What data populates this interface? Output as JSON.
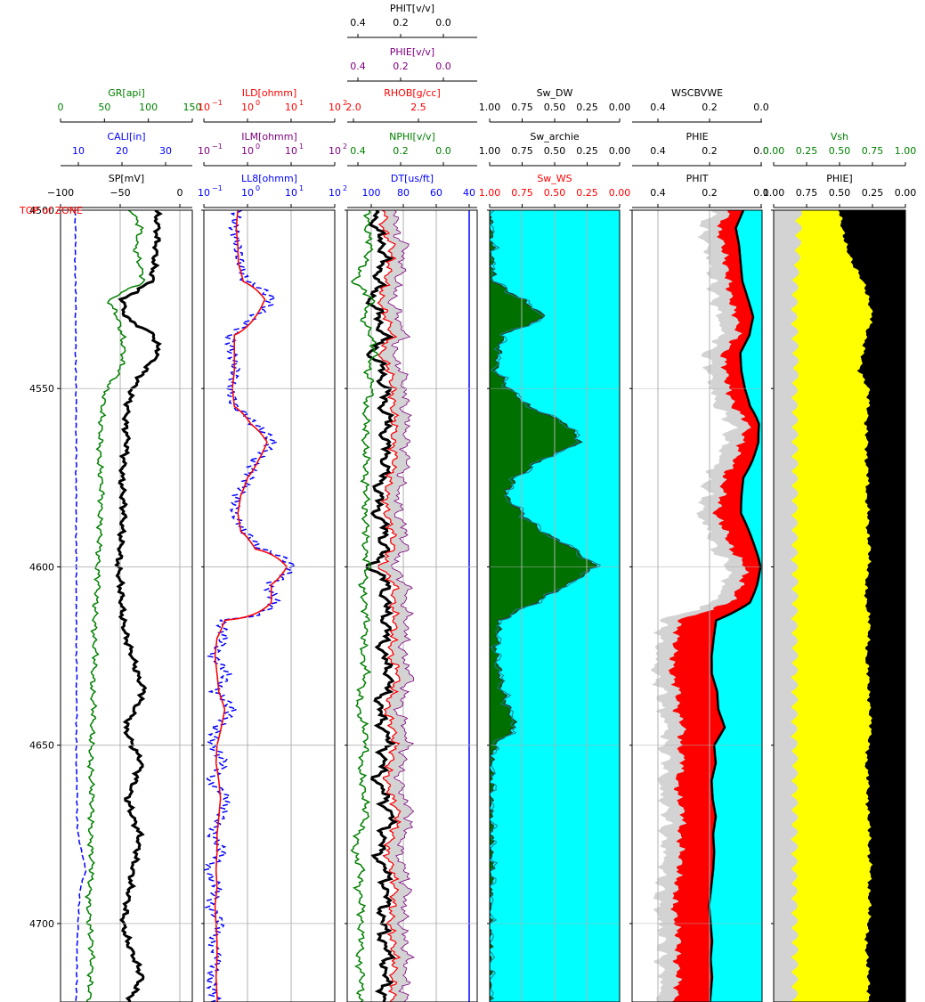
{
  "depth_axis": {
    "ticks": [
      4500,
      4550,
      4600,
      4650,
      4700
    ],
    "range": [
      4500,
      4722
    ]
  },
  "zone_label": "TOP of ZONE",
  "colors": {
    "black": "#000000",
    "green": "#008000",
    "blue": "#0000ff",
    "red": "#ff0000",
    "purple": "#800080",
    "cyan": "#00ffff",
    "darkgreen": "#006400",
    "lightgray": "#d3d3d3",
    "yellow": "#ffff00"
  },
  "tracks": [
    {
      "id": "track1",
      "scales": [
        {
          "label": "GR[api]",
          "color": "green",
          "ticks": [
            "0",
            "50",
            "100",
            "150"
          ],
          "range": [
            0,
            150
          ]
        },
        {
          "label": "CALI[in]",
          "color": "blue",
          "ticks": [
            "10",
            "20",
            "30"
          ],
          "range": [
            5,
            35
          ]
        },
        {
          "label": "SP[mV]",
          "color": "black",
          "ticks": [
            "−100",
            "−50",
            "0"
          ],
          "range": [
            -100,
            10
          ]
        }
      ]
    },
    {
      "id": "track2",
      "scales": [
        {
          "label": "ILD[ohmm]",
          "color": "red",
          "ticks": [
            "10",
            "10",
            "10",
            "10"
          ],
          "sup": [
            "−1",
            "0",
            "1",
            "2"
          ],
          "log": true
        },
        {
          "label": "ILM[ohmm]",
          "color": "purple",
          "ticks": [
            "10",
            "10",
            "10",
            "10"
          ],
          "sup": [
            "−1",
            "0",
            "1",
            "2"
          ],
          "log": true
        },
        {
          "label": "LL8[ohmm]",
          "color": "blue",
          "ticks": [
            "10",
            "10",
            "10",
            "10"
          ],
          "sup": [
            "−1",
            "0",
            "1",
            "2"
          ],
          "log": true
        }
      ]
    },
    {
      "id": "track3",
      "scales": [
        {
          "label": "PHIT[v/v]",
          "color": "black",
          "ticks": [
            "0.4",
            "0.2",
            "0.0"
          ],
          "range": [
            0.45,
            -0.15
          ]
        },
        {
          "label": "PHIE[v/v]",
          "color": "purple",
          "ticks": [
            "0.4",
            "0.2",
            "0.0"
          ],
          "range": [
            0.45,
            -0.15
          ]
        },
        {
          "label": "RHOB[g/cc]",
          "color": "red",
          "ticks": [
            "2.0",
            "2.5"
          ],
          "range": [
            1.95,
            2.95
          ]
        },
        {
          "label": "NPHI[v/v]",
          "color": "green",
          "ticks": [
            "0.4",
            "0.2",
            "0.0"
          ],
          "range": [
            0.45,
            -0.15
          ]
        },
        {
          "label": "DT[us/ft]",
          "color": "blue",
          "ticks": [
            "100",
            "80",
            "60",
            "40"
          ],
          "range": [
            140,
            40
          ]
        }
      ]
    },
    {
      "id": "track4",
      "scales": [
        {
          "label": "Sw_DW",
          "color": "black",
          "ticks": [
            "1.00",
            "0.75",
            "0.50",
            "0.25",
            "0.00"
          ],
          "range": [
            1,
            0
          ]
        },
        {
          "label": "Sw_archie",
          "color": "black",
          "ticks": [
            "1.00",
            "0.75",
            "0.50",
            "0.25",
            "0.00"
          ],
          "range": [
            1,
            0
          ]
        },
        {
          "label": "Sw_WS",
          "color": "red",
          "ticks": [
            "1.00",
            "0.75",
            "0.50",
            "0.25",
            "0.00"
          ],
          "range": [
            1,
            0
          ]
        }
      ]
    },
    {
      "id": "track5",
      "scales": [
        {
          "label": "WSCBVWE",
          "color": "black",
          "ticks": [
            "0.4",
            "0.2",
            "0.0"
          ],
          "range": [
            0.5,
            0
          ]
        },
        {
          "label": "PHIE",
          "color": "black",
          "ticks": [
            "0.4",
            "0.2",
            "0.0"
          ],
          "range": [
            0.5,
            0
          ]
        },
        {
          "label": "PHIT",
          "color": "black",
          "ticks": [
            "0.4",
            "0.2",
            "0.0"
          ],
          "range": [
            0.5,
            0
          ]
        }
      ]
    },
    {
      "id": "track6",
      "scales": [
        {
          "label": "Vsh",
          "color": "green",
          "ticks": [
            "0.00",
            "0.25",
            "0.50",
            "0.75",
            "1.00"
          ],
          "range": [
            0,
            1
          ]
        },
        {
          "label": "PHIE]",
          "color": "black",
          "ticks": [
            "1.00",
            "0.75",
            "0.50",
            "0.25",
            "0.00"
          ],
          "range": [
            1,
            0
          ]
        }
      ]
    }
  ],
  "chart_data": {
    "type": "line",
    "title": "",
    "xlabel": "",
    "ylabel": "",
    "ylim": [
      4500,
      4722
    ],
    "grid": true,
    "depth": [
      4500,
      4505,
      4510,
      4515,
      4520,
      4525,
      4530,
      4535,
      4540,
      4545,
      4550,
      4555,
      4560,
      4565,
      4570,
      4575,
      4580,
      4585,
      4590,
      4595,
      4600,
      4605,
      4610,
      4615,
      4620,
      4625,
      4630,
      4635,
      4640,
      4645,
      4650,
      4655,
      4660,
      4665,
      4670,
      4675,
      4680,
      4685,
      4690,
      4695,
      4700,
      4705,
      4710,
      4715,
      4720
    ],
    "series": [
      {
        "name": "GR[api]",
        "values": [
          80,
          92,
          85,
          90,
          95,
          55,
          65,
          70,
          72,
          68,
          52,
          48,
          46,
          45,
          44,
          46,
          47,
          45,
          45,
          44,
          42,
          43,
          40,
          39,
          38,
          40,
          37,
          36,
          38,
          36,
          35,
          34,
          35,
          36,
          35,
          34,
          35,
          36,
          33,
          32,
          33,
          35,
          36,
          34,
          33
        ]
      },
      {
        "name": "CALI[in]",
        "values": [
          8.3,
          8.4,
          8.4,
          8.3,
          8.4,
          8.5,
          8.4,
          8.5,
          8.4,
          8.5,
          8.5,
          8.6,
          8.5,
          8.6,
          8.6,
          8.5,
          8.6,
          8.6,
          8.5,
          8.6,
          8.6,
          8.6,
          8.6,
          8.6,
          8.6,
          8.6,
          8.7,
          8.6,
          8.7,
          8.6,
          8.6,
          8.6,
          8.7,
          8.8,
          8.7,
          9.0,
          9.8,
          10.8,
          9.5,
          9.2,
          9.0,
          8.8,
          8.7,
          8.7,
          8.6
        ]
      },
      {
        "name": "SP[mV]",
        "values": [
          -20,
          -19,
          -20,
          -22,
          -24,
          -48,
          -46,
          -22,
          -18,
          -30,
          -40,
          -44,
          -46,
          -44,
          -47,
          -49,
          -48,
          -47,
          -49,
          -50,
          -52,
          -50,
          -49,
          -48,
          -45,
          -40,
          -36,
          -30,
          -38,
          -46,
          -40,
          -32,
          -38,
          -44,
          -40,
          -34,
          -36,
          -40,
          -42,
          -45,
          -48,
          -44,
          -38,
          -32,
          -40
        ]
      },
      {
        "name": "ILD[ohmm]",
        "values": [
          0.6,
          0.55,
          0.6,
          0.62,
          0.8,
          2.5,
          1.5,
          0.5,
          0.5,
          0.5,
          0.45,
          0.5,
          1.2,
          2.8,
          1.8,
          1.0,
          0.7,
          0.6,
          0.7,
          1.5,
          8,
          3.5,
          3.5,
          0.3,
          0.2,
          0.18,
          0.2,
          0.22,
          0.3,
          0.25,
          0.2,
          0.19,
          0.22,
          0.24,
          0.22,
          0.2,
          0.2,
          0.19,
          0.2,
          0.18,
          0.19,
          0.2,
          0.2,
          0.19,
          0.2
        ]
      },
      {
        "name": "LL8[ohmm]",
        "values": [
          0.6,
          0.5,
          0.6,
          0.7,
          0.9,
          3.8,
          1.3,
          0.4,
          0.45,
          0.55,
          0.4,
          0.5,
          1.4,
          3.8,
          1.5,
          1.1,
          0.6,
          0.5,
          0.8,
          1.9,
          11,
          2.9,
          4.5,
          0.25,
          0.3,
          0.15,
          0.35,
          0.18,
          0.45,
          0.2,
          0.15,
          0.3,
          0.12,
          0.35,
          0.25,
          0.15,
          0.28,
          0.1,
          0.22,
          0.13,
          0.25,
          0.15,
          0.22,
          0.14,
          0.18
        ]
      },
      {
        "name": "RHOB[g/cc]",
        "values": [
          2.25,
          2.22,
          2.3,
          2.28,
          2.25,
          2.2,
          2.25,
          2.3,
          2.2,
          2.28,
          2.3,
          2.3,
          2.32,
          2.3,
          2.32,
          2.28,
          2.25,
          2.25,
          2.3,
          2.3,
          2.2,
          2.32,
          2.3,
          2.32,
          2.3,
          2.28,
          2.35,
          2.3,
          2.25,
          2.3,
          2.32,
          2.28,
          2.25,
          2.3,
          2.35,
          2.3,
          2.25,
          2.3,
          2.32,
          2.3,
          2.28,
          2.3,
          2.32,
          2.3,
          2.3
        ]
      },
      {
        "name": "NPHI[v/v]",
        "values": [
          0.35,
          0.36,
          0.34,
          0.37,
          0.42,
          0.33,
          0.38,
          0.34,
          0.32,
          0.36,
          0.33,
          0.37,
          0.36,
          0.37,
          0.36,
          0.37,
          0.36,
          0.37,
          0.36,
          0.37,
          0.35,
          0.38,
          0.37,
          0.36,
          0.37,
          0.38,
          0.36,
          0.39,
          0.4,
          0.37,
          0.36,
          0.39,
          0.38,
          0.37,
          0.36,
          0.4,
          0.42,
          0.38,
          0.4,
          0.38,
          0.39,
          0.38,
          0.4,
          0.38,
          0.39
        ]
      },
      {
        "name": "Sw_WS",
        "values": [
          1.0,
          0.99,
          0.98,
          0.98,
          0.97,
          0.75,
          0.57,
          0.9,
          0.93,
          0.95,
          0.85,
          0.7,
          0.4,
          0.3,
          0.6,
          0.8,
          0.88,
          0.75,
          0.6,
          0.35,
          0.18,
          0.4,
          0.65,
          0.92,
          0.94,
          0.95,
          0.92,
          0.9,
          0.85,
          0.8,
          0.96,
          0.99,
          0.98,
          0.99,
          0.99,
          0.98,
          0.99,
          0.98,
          0.99,
          1.0,
          1.0,
          1.0,
          1.0,
          1.0,
          1.0
        ]
      },
      {
        "name": "PHIE",
        "values": [
          0.12,
          0.17,
          0.15,
          0.14,
          0.13,
          0.12,
          0.1,
          0.09,
          0.15,
          0.14,
          0.13,
          0.11,
          0.05,
          0.08,
          0.1,
          0.15,
          0.15,
          0.18,
          0.14,
          0.12,
          0.06,
          0.08,
          0.12,
          0.32,
          0.33,
          0.34,
          0.35,
          0.32,
          0.33,
          0.3,
          0.32,
          0.3,
          0.33,
          0.32,
          0.3,
          0.32,
          0.31,
          0.32,
          0.33,
          0.34,
          0.33,
          0.32,
          0.33,
          0.32,
          0.33
        ]
      },
      {
        "name": "Vsh",
        "values": [
          0.5,
          0.52,
          0.55,
          0.6,
          0.68,
          0.72,
          0.75,
          0.7,
          0.68,
          0.65,
          0.72,
          0.72,
          0.7,
          0.71,
          0.7,
          0.72,
          0.7,
          0.72,
          0.71,
          0.73,
          0.72,
          0.7,
          0.7,
          0.73,
          0.72,
          0.7,
          0.72,
          0.72,
          0.73,
          0.74,
          0.72,
          0.7,
          0.72,
          0.71,
          0.72,
          0.73,
          0.72,
          0.74,
          0.72,
          0.73,
          0.72,
          0.7,
          0.71,
          0.72,
          0.72
        ]
      }
    ]
  }
}
